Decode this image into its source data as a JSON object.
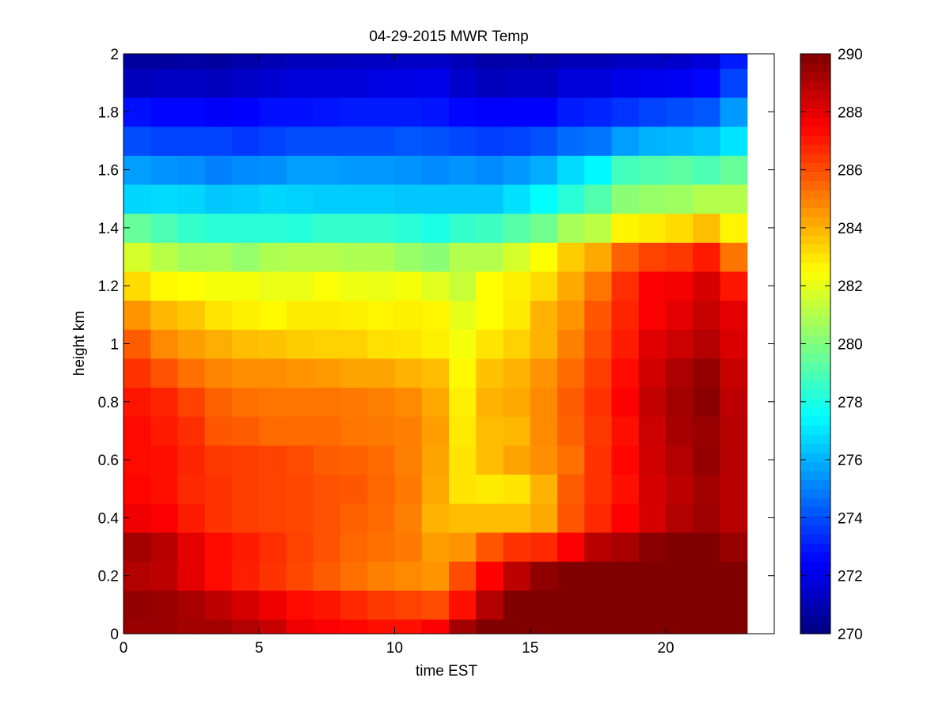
{
  "chart_data": {
    "type": "heatmap",
    "title": "04-29-2015 MWR Temp",
    "xlabel": "time EST",
    "ylabel": "height km",
    "xlim": [
      0,
      24
    ],
    "ylim": [
      0,
      2
    ],
    "x_ticks": [
      0,
      5,
      10,
      15,
      20
    ],
    "y_ticks": [
      0,
      0.2,
      0.4,
      0.6,
      0.8,
      1,
      1.2,
      1.4,
      1.6,
      1.8,
      2
    ],
    "colorbar": {
      "range": [
        270,
        290
      ],
      "ticks": [
        270,
        272,
        274,
        276,
        278,
        280,
        282,
        284,
        286,
        288,
        290
      ],
      "colormap": "jet"
    },
    "x_start": 0,
    "x_step": 1,
    "columns": 23,
    "grid": false,
    "rows": [
      {
        "height": 0.0,
        "values": [
          289.5,
          289.5,
          289.3,
          289.3,
          289.0,
          288.6,
          287.8,
          287.6,
          287.4,
          287.2,
          287.2,
          287.6,
          289.3,
          290,
          290,
          290,
          290,
          290,
          290,
          290,
          290,
          290,
          290
        ]
      },
      {
        "height": 0.1,
        "values": [
          289.6,
          289.5,
          289.2,
          288.8,
          288.3,
          287.8,
          287.3,
          287.1,
          286.7,
          286.4,
          286.2,
          286.0,
          287.2,
          289.0,
          290,
          290,
          290,
          290,
          290,
          290,
          290,
          290,
          290
        ]
      },
      {
        "height": 0.2,
        "values": [
          289.0,
          288.8,
          288.0,
          287.3,
          286.9,
          286.5,
          286.1,
          285.7,
          285.3,
          285.0,
          284.8,
          284.6,
          286.0,
          287.5,
          288.8,
          289.7,
          290,
          290,
          290,
          290,
          290,
          290,
          290
        ]
      },
      {
        "height": 0.3,
        "values": [
          289.3,
          288.9,
          288.0,
          287.3,
          287.0,
          286.6,
          286.2,
          285.9,
          285.5,
          285.3,
          285.1,
          284.4,
          284.6,
          285.8,
          286.5,
          286.7,
          287.6,
          288.9,
          289.2,
          289.8,
          290,
          290,
          289.5
        ]
      },
      {
        "height": 0.4,
        "values": [
          287.8,
          287.6,
          287.0,
          286.5,
          286.3,
          286.2,
          286.1,
          285.9,
          285.6,
          285.4,
          285.0,
          284.0,
          283.8,
          283.8,
          283.8,
          284.2,
          285.8,
          286.7,
          287.5,
          288.3,
          289.0,
          289.4,
          288.9
        ]
      },
      {
        "height": 0.5,
        "values": [
          287.4,
          287.2,
          286.7,
          286.5,
          286.3,
          286.2,
          286.1,
          285.9,
          285.8,
          285.5,
          285.1,
          284.2,
          283.0,
          282.9,
          283.0,
          284.0,
          285.7,
          286.5,
          287.2,
          288.3,
          288.8,
          289.3,
          288.9
        ]
      },
      {
        "height": 0.6,
        "values": [
          287.3,
          287.2,
          286.8,
          286.4,
          286.3,
          286.2,
          286.0,
          285.7,
          285.6,
          285.4,
          285.0,
          284.3,
          283.0,
          283.8,
          284.3,
          284.7,
          285.3,
          286.5,
          287.4,
          288.4,
          289.0,
          289.6,
          288.9
        ]
      },
      {
        "height": 0.7,
        "values": [
          287.3,
          287.0,
          286.6,
          285.8,
          285.7,
          285.4,
          285.4,
          285.4,
          285.2,
          285.1,
          285.0,
          284.4,
          282.9,
          283.8,
          283.9,
          284.8,
          285.6,
          286.4,
          287.2,
          288.5,
          289.2,
          289.5,
          288.9
        ]
      },
      {
        "height": 0.8,
        "values": [
          287.1,
          286.8,
          286.2,
          285.6,
          285.3,
          285.2,
          285.2,
          285.2,
          285.1,
          285.0,
          284.8,
          284.2,
          282.8,
          284.0,
          284.2,
          284.8,
          285.7,
          286.5,
          287.5,
          288.7,
          289.3,
          289.8,
          288.8
        ]
      },
      {
        "height": 0.9,
        "values": [
          286.5,
          285.9,
          285.3,
          284.9,
          284.7,
          284.7,
          284.6,
          284.5,
          284.3,
          284.3,
          284.0,
          283.8,
          282.6,
          283.7,
          284.0,
          284.6,
          285.4,
          286.3,
          287.3,
          288.4,
          289.1,
          289.6,
          288.6
        ]
      },
      {
        "height": 1.0,
        "values": [
          285.7,
          284.8,
          284.4,
          284.1,
          283.8,
          283.7,
          283.5,
          283.4,
          283.4,
          283.1,
          283.0,
          282.8,
          282.3,
          283.0,
          283.4,
          284.0,
          285.0,
          286.0,
          287.0,
          288.1,
          288.5,
          289.0,
          288.2
        ]
      },
      {
        "height": 1.1,
        "values": [
          284.6,
          283.9,
          283.6,
          283.0,
          282.8,
          282.6,
          282.9,
          282.9,
          282.8,
          282.7,
          282.8,
          282.7,
          282.0,
          282.5,
          282.9,
          284.0,
          284.6,
          285.8,
          286.8,
          287.6,
          288.0,
          288.6,
          288.0
        ]
      },
      {
        "height": 1.2,
        "values": [
          283.2,
          282.6,
          282.5,
          282.3,
          282.3,
          282.1,
          282.1,
          282.4,
          282.2,
          282.1,
          282.3,
          281.9,
          281.4,
          282.5,
          282.8,
          283.2,
          284.2,
          285.2,
          286.6,
          287.6,
          287.7,
          288.3,
          287.1
        ]
      },
      {
        "height": 1.3,
        "values": [
          281.7,
          281.1,
          280.7,
          280.8,
          280.4,
          280.9,
          281.0,
          281.0,
          280.9,
          280.9,
          280.5,
          280.2,
          281.0,
          281.0,
          281.7,
          282.5,
          283.5,
          284.2,
          285.6,
          286.2,
          286.4,
          287.0,
          285.2
        ]
      },
      {
        "height": 1.4,
        "values": [
          279.5,
          279.0,
          278.5,
          278.3,
          278.3,
          278.3,
          278.2,
          278.5,
          278.5,
          278.5,
          278.3,
          278.0,
          278.5,
          278.7,
          279.2,
          279.7,
          280.8,
          281.2,
          282.7,
          282.9,
          283.2,
          283.8,
          282.7
        ]
      },
      {
        "height": 1.5,
        "values": [
          276.7,
          276.8,
          276.7,
          276.4,
          276.5,
          276.7,
          276.6,
          276.5,
          276.5,
          276.5,
          276.4,
          276.4,
          276.4,
          276.4,
          276.9,
          277.5,
          278.3,
          279.1,
          280.2,
          280.5,
          280.6,
          281.0,
          281.0
        ]
      },
      {
        "height": 1.6,
        "values": [
          275.6,
          275.4,
          275.3,
          275.0,
          275.2,
          275.3,
          275.6,
          275.6,
          275.5,
          275.5,
          275.4,
          275.2,
          275.4,
          275.2,
          275.5,
          275.9,
          276.8,
          277.4,
          278.8,
          279.1,
          279.3,
          279.0,
          279.5
        ]
      },
      {
        "height": 1.7,
        "values": [
          274.0,
          273.8,
          273.8,
          273.8,
          273.6,
          273.8,
          274.0,
          274.0,
          274.0,
          274.0,
          274.2,
          274.1,
          273.9,
          273.7,
          273.8,
          274.1,
          274.6,
          274.8,
          275.6,
          276.0,
          276.1,
          276.3,
          277.0
        ]
      },
      {
        "height": 1.8,
        "values": [
          272.8,
          272.6,
          272.6,
          272.4,
          272.5,
          272.8,
          272.8,
          272.9,
          273.0,
          273.0,
          273.0,
          272.9,
          272.6,
          272.5,
          272.5,
          272.5,
          273.0,
          273.2,
          273.5,
          273.8,
          274.0,
          274.2,
          275.5
        ]
      },
      {
        "height": 1.9,
        "values": [
          271.2,
          271.3,
          271.3,
          271.2,
          271.4,
          271.6,
          271.8,
          271.8,
          271.8,
          271.9,
          272.0,
          272.1,
          271.5,
          271.2,
          271.3,
          271.3,
          271.8,
          271.8,
          272.1,
          272.2,
          272.3,
          272.6,
          273.8
        ]
      },
      {
        "height": 2.0,
        "values": [
          270.6,
          270.6,
          270.7,
          270.6,
          270.8,
          271.0,
          271.2,
          271.2,
          271.3,
          271.3,
          271.4,
          271.4,
          271.1,
          270.8,
          270.9,
          270.9,
          271.1,
          271.1,
          271.3,
          271.4,
          271.5,
          271.8,
          273.0
        ]
      }
    ]
  }
}
